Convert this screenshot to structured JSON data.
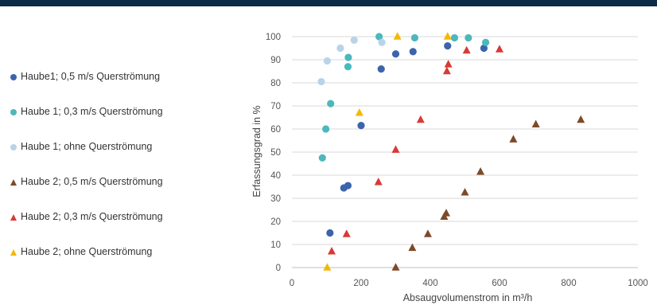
{
  "chart_data": {
    "type": "scatter",
    "xlabel": "Absaugvolumenstrom in m³/h",
    "ylabel": "Erfassungsgrad in %",
    "xlim": [
      0,
      1000
    ],
    "ylim": [
      0,
      100
    ],
    "x_ticks": [
      0,
      200,
      400,
      600,
      800,
      1000
    ],
    "y_ticks": [
      0,
      10,
      20,
      30,
      40,
      50,
      60,
      70,
      80,
      90,
      100
    ],
    "grid": "horizontal",
    "legend_position": "left",
    "series": [
      {
        "name": "Haube1; 0,5 m/s Querströmung",
        "marker": "circle",
        "color": "#3c64ac",
        "points": [
          [
            110,
            15
          ],
          [
            150,
            34.5
          ],
          [
            162,
            35.5
          ],
          [
            200,
            61.5
          ],
          [
            258,
            86
          ],
          [
            300,
            92.5
          ],
          [
            350,
            93.5
          ],
          [
            450,
            96
          ],
          [
            555,
            95
          ]
        ]
      },
      {
        "name": "Haube 1; 0,3 m/s Querströmung",
        "marker": "circle",
        "color": "#4bb8bd",
        "points": [
          [
            88,
            47.5
          ],
          [
            98,
            60
          ],
          [
            112,
            71
          ],
          [
            162,
            87
          ],
          [
            163,
            91
          ],
          [
            252,
            100
          ],
          [
            355,
            99.5
          ],
          [
            470,
            99.5
          ],
          [
            510,
            99.5
          ],
          [
            560,
            97.5
          ]
        ]
      },
      {
        "name": "Haube 1; ohne Querströmung",
        "marker": "circle",
        "color": "#b9d3e9",
        "points": [
          [
            85,
            80.5
          ],
          [
            102,
            89.5
          ],
          [
            140,
            95
          ],
          [
            180,
            98.5
          ],
          [
            260,
            97.5
          ]
        ]
      },
      {
        "name": "Haube 2; 0,5 m/s Querströmung",
        "marker": "triangle",
        "color": "#7d4a28",
        "points": [
          [
            300,
            0
          ],
          [
            348,
            8.5
          ],
          [
            393,
            14.5
          ],
          [
            440,
            22
          ],
          [
            446,
            23.5
          ],
          [
            500,
            32.5
          ],
          [
            545,
            41.5
          ],
          [
            640,
            55.5
          ],
          [
            705,
            62
          ],
          [
            835,
            64
          ]
        ]
      },
      {
        "name": "Haube 2; 0,3 m/s Querströmung",
        "marker": "triangle",
        "color": "#d83a36",
        "points": [
          [
            115,
            7
          ],
          [
            158,
            14.5
          ],
          [
            250,
            37
          ],
          [
            300,
            51
          ],
          [
            372,
            64
          ],
          [
            448,
            85
          ],
          [
            452,
            88
          ],
          [
            505,
            94
          ],
          [
            600,
            94.5
          ]
        ]
      },
      {
        "name": "Haube 2; ohne Querströmung",
        "marker": "triangle",
        "color": "#f5b800",
        "points": [
          [
            102,
            0
          ],
          [
            195,
            67
          ],
          [
            305,
            100
          ],
          [
            450,
            100
          ]
        ]
      }
    ]
  }
}
